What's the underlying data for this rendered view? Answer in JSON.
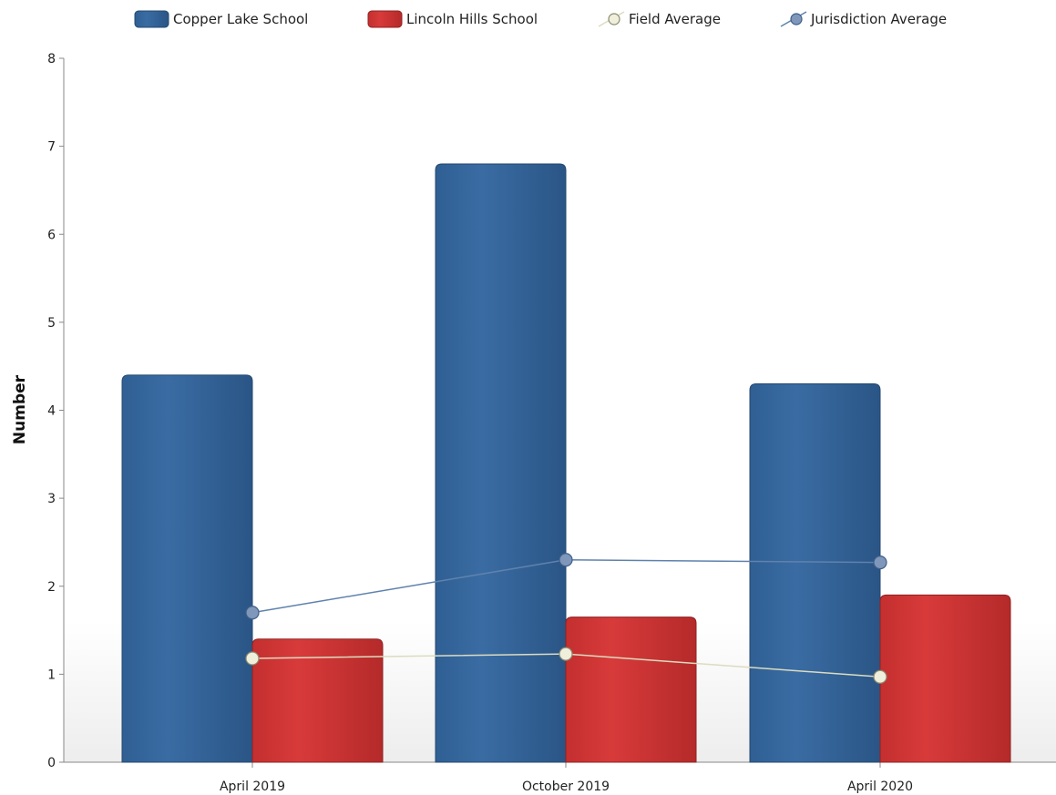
{
  "chart_data": {
    "type": "bar",
    "categories": [
      "April 2019",
      "October 2019",
      "April 2020"
    ],
    "series": [
      {
        "name": "Copper Lake School",
        "kind": "bar",
        "color": "#336699",
        "values": [
          4.4,
          6.8,
          4.3
        ]
      },
      {
        "name": "Lincoln Hills School",
        "kind": "bar",
        "color": "#cc3333",
        "values": [
          1.4,
          1.65,
          1.9
        ]
      },
      {
        "name": "Field Average",
        "kind": "line",
        "color": "#e8e8cc",
        "values": [
          1.18,
          1.23,
          0.97
        ]
      },
      {
        "name": "Jurisdiction Average",
        "kind": "line",
        "color": "#6f8fb5",
        "values": [
          1.7,
          2.3,
          2.27
        ]
      }
    ],
    "title": "",
    "xlabel": "",
    "ylabel": "Number",
    "ylim": [
      0,
      8
    ],
    "yticks": [
      "0",
      "1",
      "2",
      "3",
      "4",
      "5",
      "6",
      "7",
      "8"
    ],
    "grid": false,
    "legend_position": "top"
  }
}
